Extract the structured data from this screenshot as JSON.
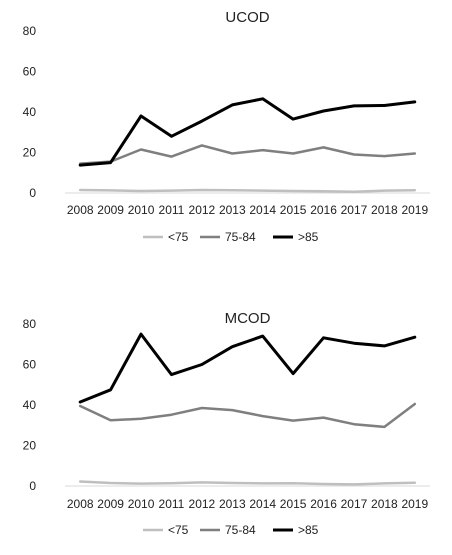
{
  "chart_data": [
    {
      "type": "line",
      "title": "UCOD",
      "xlabel": "",
      "ylabel": "",
      "ylim": [
        0,
        80
      ],
      "yticks": [
        0,
        20,
        40,
        60,
        80
      ],
      "categories": [
        "2008",
        "2009",
        "2010",
        "2011",
        "2012",
        "2013",
        "2014",
        "2015",
        "2016",
        "2017",
        "2018",
        "2019"
      ],
      "grid": false,
      "legend_position": "bottom",
      "series": [
        {
          "name": "<75",
          "color": "#bfbfbf",
          "values": [
            1.5,
            1.3,
            1.0,
            1.2,
            1.5,
            1.4,
            1.2,
            1.0,
            0.9,
            0.6,
            1.2,
            1.4
          ]
        },
        {
          "name": "75-84",
          "color": "#7f7f7f",
          "values": [
            14.5,
            15.5,
            21.5,
            18.0,
            23.5,
            19.5,
            21.2,
            19.5,
            22.5,
            19.0,
            18.2,
            19.5
          ]
        },
        {
          "name": ">85",
          "color": "#000000",
          "values": [
            13.8,
            15.0,
            38.0,
            28.0,
            35.5,
            43.5,
            46.5,
            36.5,
            40.5,
            43.0,
            43.2,
            45.0
          ]
        }
      ]
    },
    {
      "type": "line",
      "title": "MCOD",
      "xlabel": "",
      "ylabel": "",
      "ylim": [
        0,
        80
      ],
      "yticks": [
        0,
        20,
        40,
        60,
        80
      ],
      "categories": [
        "2008",
        "2009",
        "2010",
        "2011",
        "2012",
        "2013",
        "2014",
        "2015",
        "2016",
        "2017",
        "2018",
        "2019"
      ],
      "grid": false,
      "legend_position": "bottom",
      "series": [
        {
          "name": "<75",
          "color": "#bfbfbf",
          "values": [
            2.2,
            1.5,
            1.2,
            1.4,
            1.8,
            1.5,
            1.3,
            1.4,
            1.0,
            0.8,
            1.3,
            1.6
          ]
        },
        {
          "name": "75-84",
          "color": "#7f7f7f",
          "values": [
            39.5,
            32.5,
            33.2,
            35.2,
            38.5,
            37.5,
            34.5,
            32.3,
            33.8,
            30.5,
            29.2,
            40.5
          ]
        },
        {
          "name": ">85",
          "color": "#000000",
          "values": [
            41.5,
            47.5,
            75.0,
            55.0,
            60.0,
            68.8,
            74.0,
            55.5,
            73.2,
            70.5,
            69.2,
            73.5
          ]
        }
      ]
    }
  ]
}
